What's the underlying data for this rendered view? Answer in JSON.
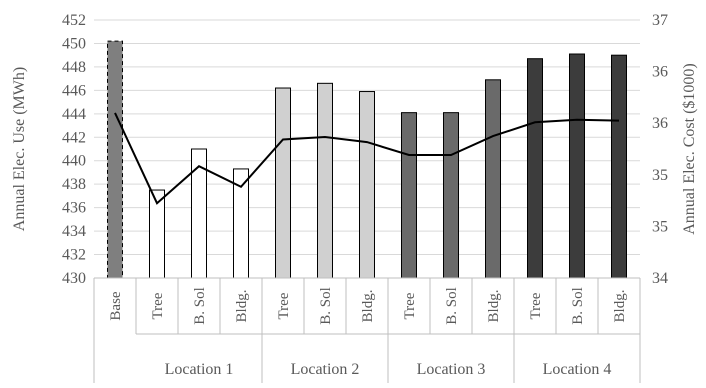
{
  "chart_data": {
    "type": "bar",
    "title": "",
    "ylabel_left": "Annual Elec. Use (MWh)",
    "ylabel_right": "Annual Elec. Cost ($1000)",
    "ylim_left": [
      430,
      452
    ],
    "ylim_right": [
      34,
      37
    ],
    "left_ticks": [
      "430",
      "432",
      "434",
      "436",
      "438",
      "440",
      "442",
      "444",
      "446",
      "448",
      "450",
      "452"
    ],
    "right_ticks": [
      "34",
      "35",
      "35",
      "36",
      "36",
      "37"
    ],
    "grid": true,
    "categories": [
      "Base",
      "Tree",
      "B. Sol",
      "Bldg.",
      "Tree",
      "B. Sol",
      "Bldg.",
      "Tree",
      "B. Sol",
      "Bldg.",
      "Tree",
      "B. Sol",
      "Bldg."
    ],
    "groups": [
      {
        "label": "",
        "count": 1
      },
      {
        "label": "Location 1",
        "count": 3
      },
      {
        "label": "Location 2",
        "count": 3
      },
      {
        "label": "Location 3",
        "count": 3
      },
      {
        "label": "Location 4",
        "count": 3
      }
    ],
    "bars": {
      "axis": "left",
      "values": [
        450.2,
        437.5,
        441.0,
        439.3,
        446.2,
        446.6,
        445.9,
        444.1,
        444.1,
        446.9,
        448.7,
        449.1,
        449.0
      ],
      "fill": [
        "#7f7f7f",
        "#ffffff",
        "#ffffff",
        "#ffffff",
        "#d0d0d0",
        "#d0d0d0",
        "#d0d0d0",
        "#6a6a6a",
        "#6a6a6a",
        "#6a6a6a",
        "#3c3c3c",
        "#3c3c3c",
        "#3c3c3c"
      ],
      "stroke": "#000000",
      "dashed_index": 0
    },
    "line": {
      "axis": "right",
      "values": [
        35.92,
        34.87,
        35.3,
        35.06,
        35.61,
        35.64,
        35.58,
        35.43,
        35.43,
        35.65,
        35.81,
        35.84,
        35.83
      ],
      "color": "#000000"
    }
  }
}
